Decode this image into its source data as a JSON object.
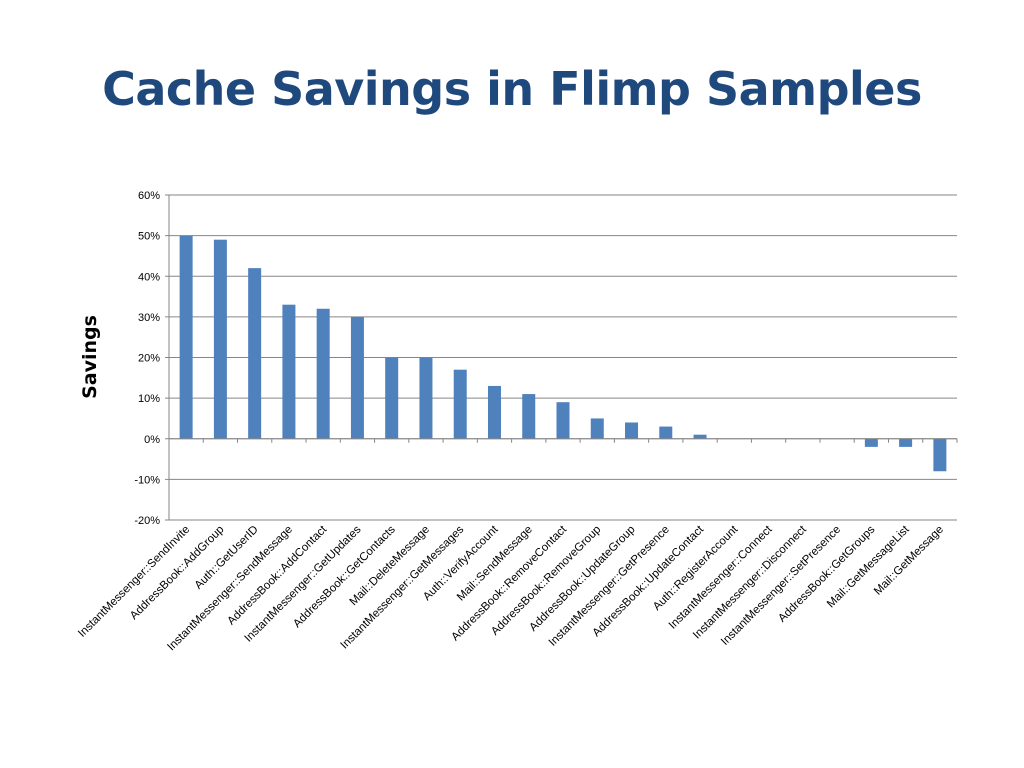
{
  "slide": {
    "title": "Cache Savings in Flimp Samples"
  },
  "chart_data": {
    "type": "bar",
    "title": "",
    "xlabel": "",
    "ylabel": "Savings",
    "ylim": [
      -20,
      60
    ],
    "yticks": [
      "60%",
      "50%",
      "40%",
      "30%",
      "20%",
      "10%",
      "0%",
      "-10%",
      "-20%"
    ],
    "grid": true,
    "bar_color": "#4f81bd",
    "categories": [
      "InstantMessenger::SendInvite",
      "AddressBook::AddGroup",
      "Auth::GetUserID",
      "InstantMessenger::SendMessage",
      "AddressBook::AddContact",
      "InstantMessenger::GetUpdates",
      "AddressBook::GetContacts",
      "Mail::DeleteMessage",
      "InstantMessenger::GetMessages",
      "Auth::VerifyAccount",
      "Mail::SendMessage",
      "AddressBook::RemoveContact",
      "AddressBook::RemoveGroup",
      "AddressBook::UpdateGroup",
      "InstantMessenger::GetPresence",
      "AddressBook::UpdateContact",
      "Auth::RegisterAccount",
      "InstantMessenger::Connect",
      "InstantMessenger::Disconnect",
      "InstantMessenger::SetPresence",
      "AddressBook::GetGroups",
      "Mail::GetMessageList",
      "Mail::GetMessage"
    ],
    "values": [
      50,
      49,
      42,
      33,
      32,
      30,
      20,
      20,
      17,
      13,
      11,
      9,
      5,
      4,
      3,
      1,
      0,
      0,
      0,
      0,
      -2,
      -2,
      -8
    ]
  }
}
